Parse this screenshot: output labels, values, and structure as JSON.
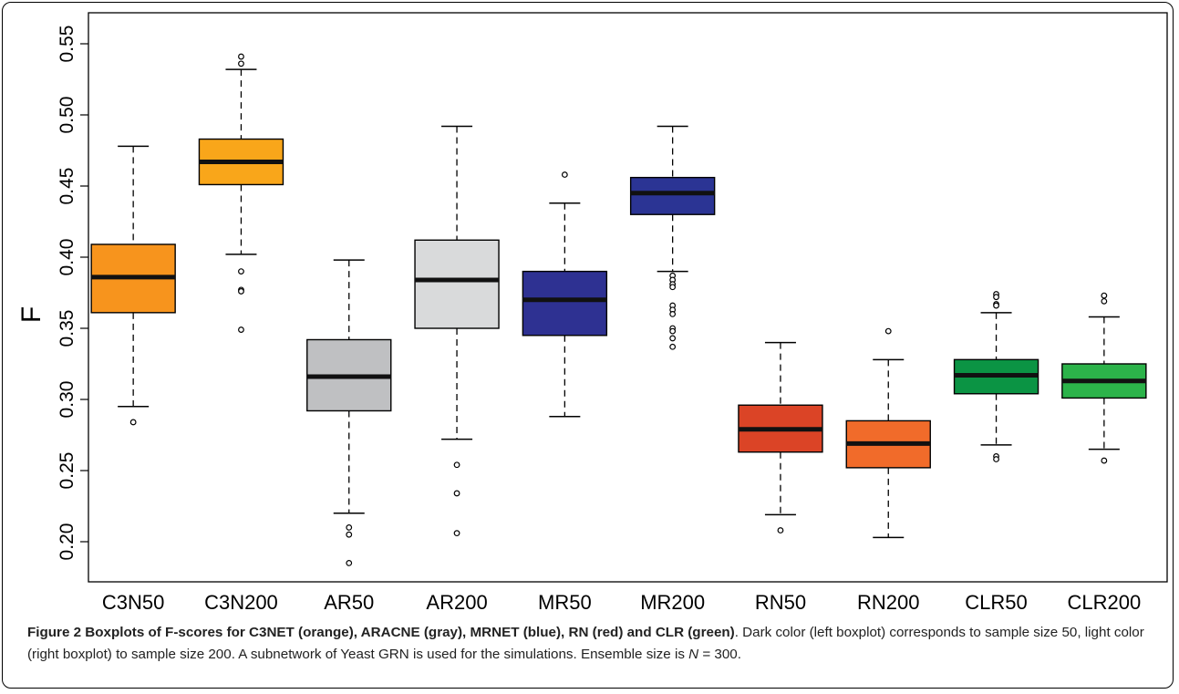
{
  "chart_data": {
    "type": "boxplot",
    "title": "",
    "xlabel": "",
    "ylabel": "F",
    "ylim": [
      0.175,
      0.555
    ],
    "yticks": [
      0.2,
      0.25,
      0.3,
      0.35,
      0.4,
      0.45,
      0.5,
      0.55
    ],
    "ytick_labels": [
      "0.20",
      "0.25",
      "0.30",
      "0.35",
      "0.40",
      "0.45",
      "0.50",
      "0.55"
    ],
    "grid": false,
    "legend": "none",
    "categories": [
      "C3N50",
      "C3N200",
      "AR50",
      "AR200",
      "MR50",
      "MR200",
      "RN50",
      "RN200",
      "CLR50",
      "CLR200"
    ],
    "colors": [
      "#F7941D",
      "#F9A61A",
      "#BFC0C2",
      "#D9DADB",
      "#2E3192",
      "#2B3494",
      "#DB4426",
      "#F16B2A",
      "#0B9444",
      "#2CB34A"
    ],
    "boxes": [
      {
        "whisker_low": 0.295,
        "q1": 0.361,
        "median": 0.386,
        "q3": 0.409,
        "whisker_high": 0.478,
        "outliers": [
          0.284
        ]
      },
      {
        "whisker_low": 0.402,
        "q1": 0.451,
        "median": 0.467,
        "q3": 0.483,
        "whisker_high": 0.532,
        "outliers": [
          0.541,
          0.536,
          0.39,
          0.377,
          0.376,
          0.349
        ]
      },
      {
        "whisker_low": 0.22,
        "q1": 0.292,
        "median": 0.316,
        "q3": 0.342,
        "whisker_high": 0.398,
        "outliers": [
          0.21,
          0.205,
          0.185
        ]
      },
      {
        "whisker_low": 0.272,
        "q1": 0.35,
        "median": 0.384,
        "q3": 0.412,
        "whisker_high": 0.492,
        "outliers": [
          0.254,
          0.234,
          0.206
        ]
      },
      {
        "whisker_low": 0.288,
        "q1": 0.345,
        "median": 0.37,
        "q3": 0.39,
        "whisker_high": 0.438,
        "outliers": [
          0.458
        ]
      },
      {
        "whisker_low": 0.39,
        "q1": 0.43,
        "median": 0.445,
        "q3": 0.456,
        "whisker_high": 0.492,
        "outliers": [
          0.387,
          0.384,
          0.381,
          0.379,
          0.366,
          0.363,
          0.36,
          0.35,
          0.348,
          0.343,
          0.337
        ]
      },
      {
        "whisker_low": 0.219,
        "q1": 0.263,
        "median": 0.279,
        "q3": 0.296,
        "whisker_high": 0.34,
        "outliers": [
          0.208
        ]
      },
      {
        "whisker_low": 0.203,
        "q1": 0.252,
        "median": 0.269,
        "q3": 0.285,
        "whisker_high": 0.328,
        "outliers": [
          0.348
        ]
      },
      {
        "whisker_low": 0.268,
        "q1": 0.304,
        "median": 0.317,
        "q3": 0.328,
        "whisker_high": 0.361,
        "outliers": [
          0.374,
          0.372,
          0.367,
          0.366,
          0.26,
          0.258
        ]
      },
      {
        "whisker_low": 0.265,
        "q1": 0.301,
        "median": 0.313,
        "q3": 0.325,
        "whisker_high": 0.358,
        "outliers": [
          0.373,
          0.369,
          0.257
        ]
      }
    ]
  },
  "caption": {
    "title": "Figure 2 Boxplots of F-scores for C3NET (orange), ARACNE (gray), MRNET (blue), RN (red) and CLR (green)",
    "text_pre": ". Dark color (left boxplot) corresponds to sample size 50, light color (right boxplot) to sample size 200. A subnetwork of Yeast GRN is used for the simulations. Ensemble size is ",
    "symbol": "N",
    "text_post": " = 300."
  }
}
